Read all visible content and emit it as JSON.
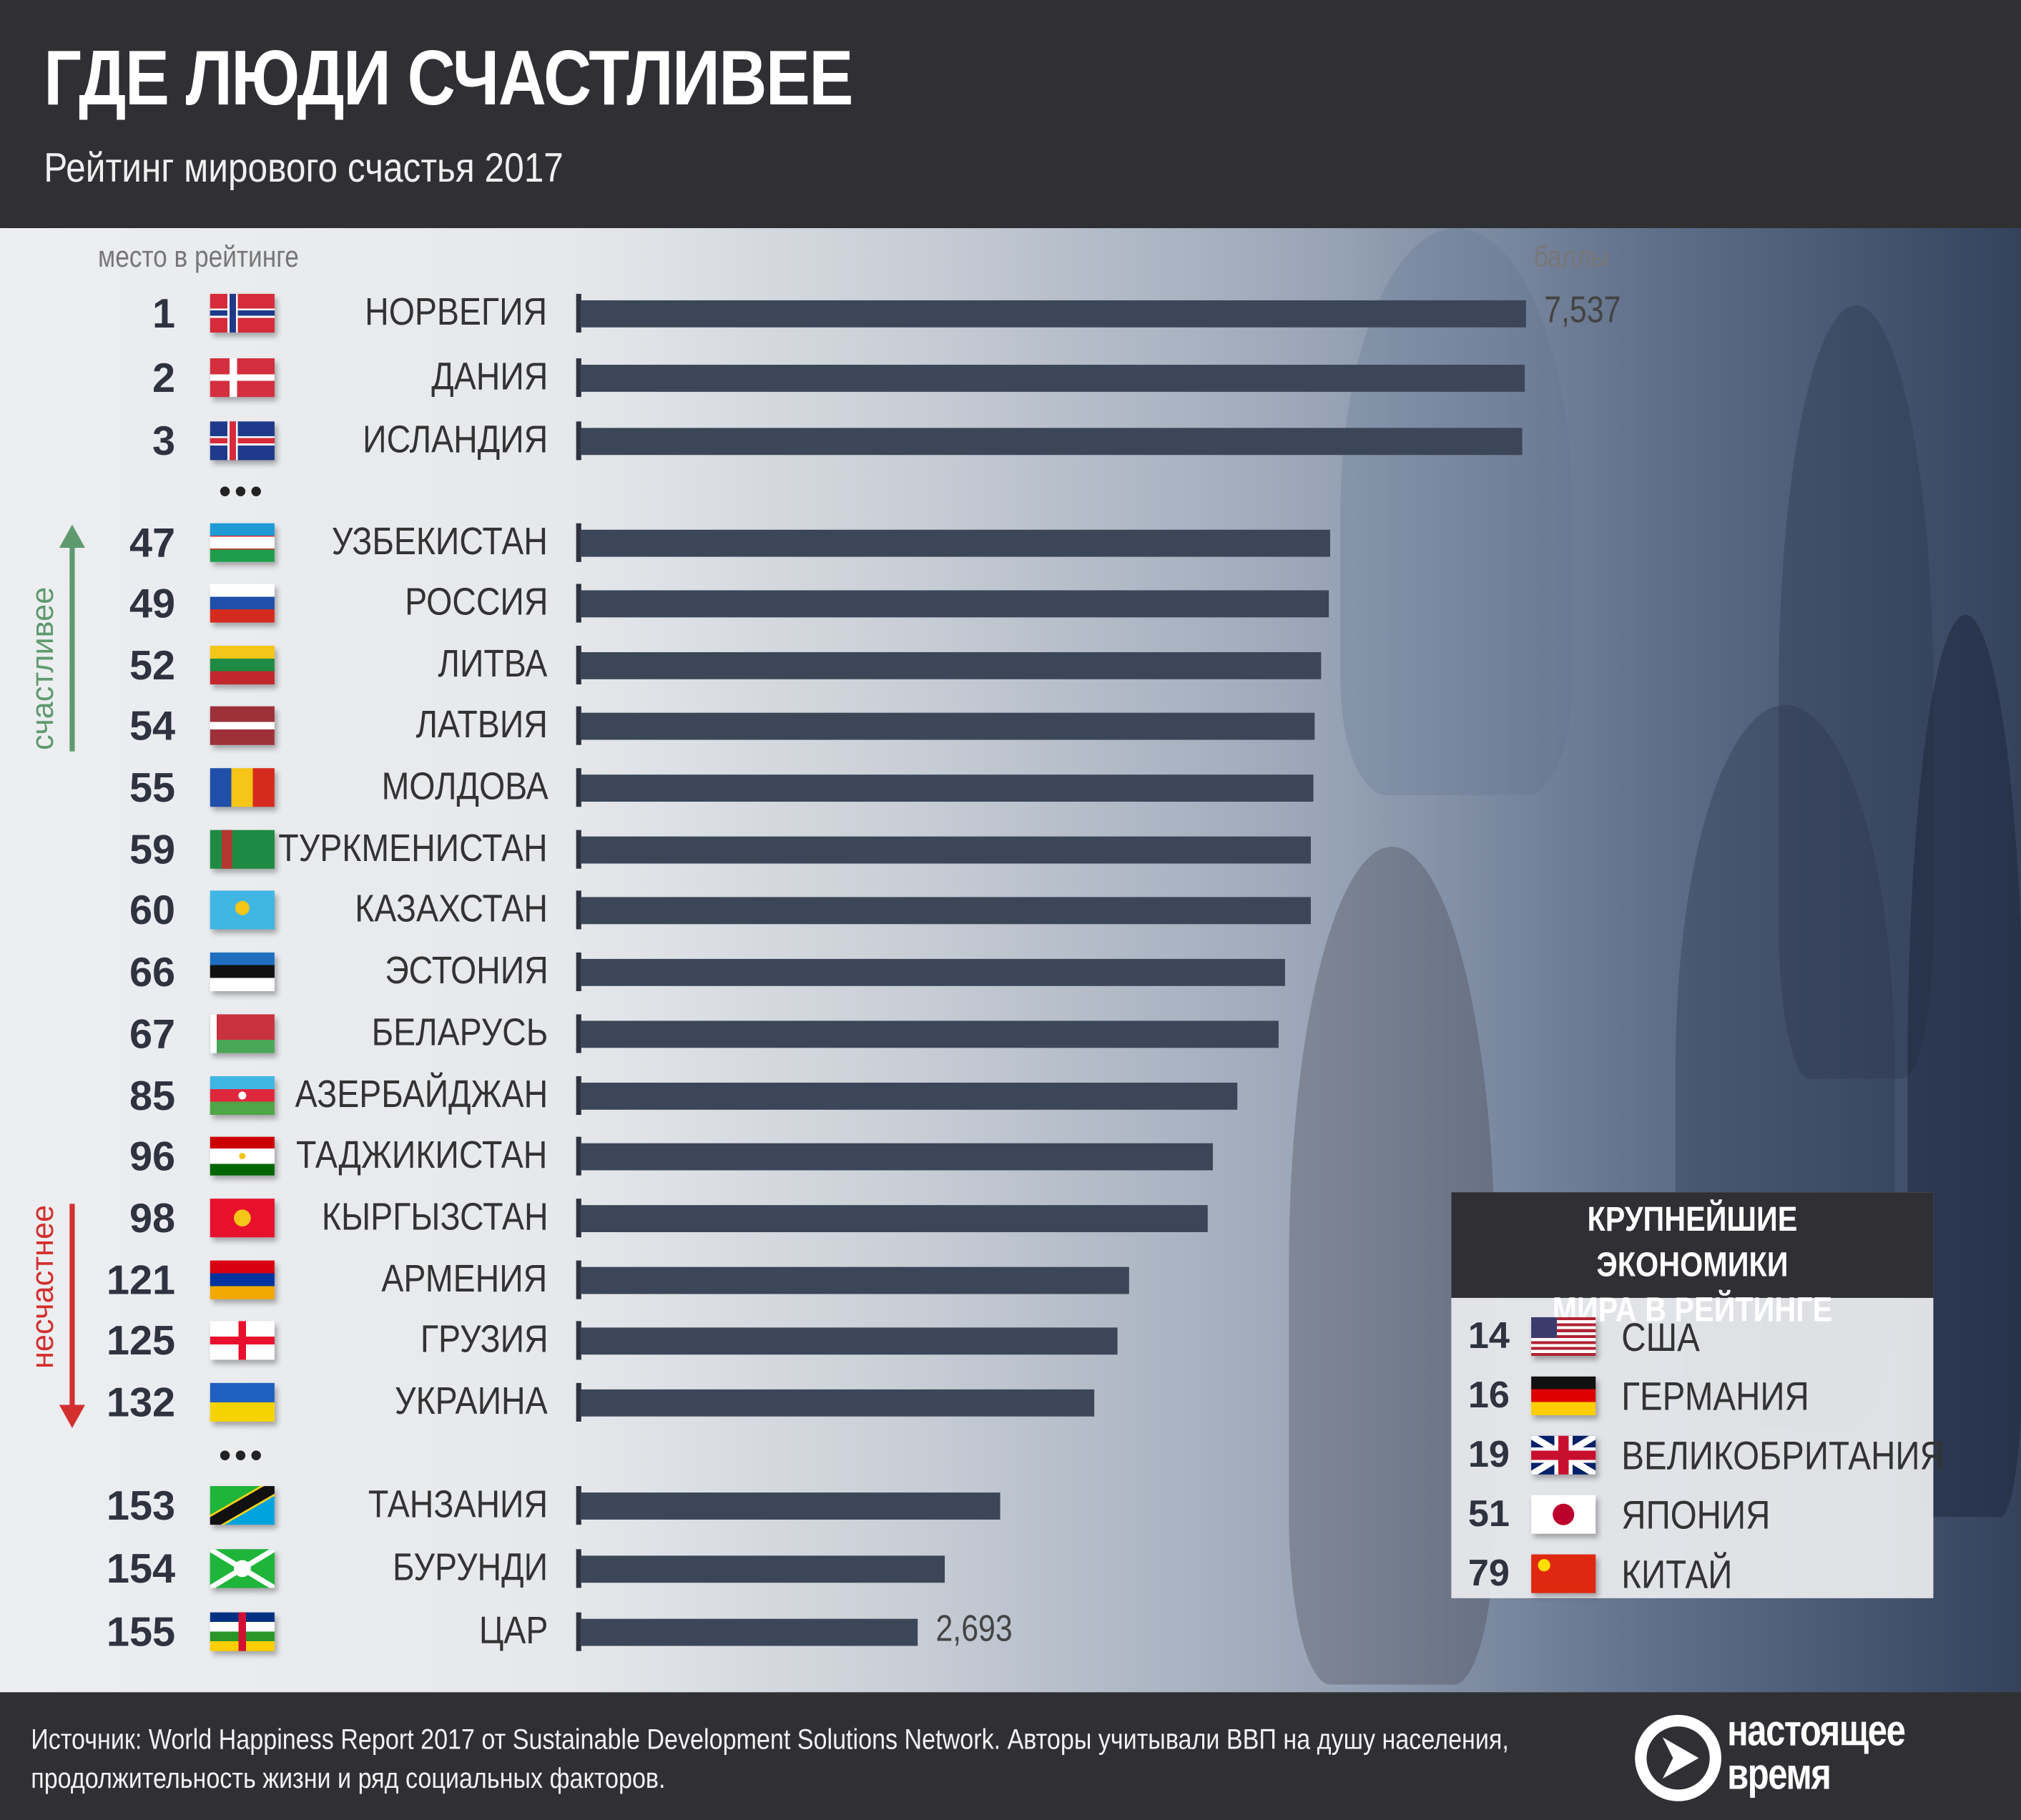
{
  "header": {
    "title": "ГДЕ ЛЮДИ СЧАСТЛИВЕЕ",
    "subtitle": "Рейтинг мирового счастья 2017"
  },
  "labels": {
    "rank_column": "место в рейтинге",
    "score_column": "баллы",
    "happier": "счастливее",
    "unhappier": "несчастнее",
    "ellipsis": "•••"
  },
  "colors": {
    "bar": "#3b4659",
    "happier_arrow": "#5f9a6e",
    "unhappier_arrow": "#d32f2f",
    "header_bg": "#303034"
  },
  "chart_data": {
    "type": "bar",
    "orientation": "horizontal",
    "title": "ГДЕ ЛЮДИ СЧАСТЛИВЕЕ",
    "subtitle": "Рейтинг мирового счастья 2017",
    "xlabel": "баллы",
    "ylabel": "место в рейтинге",
    "xlim": [
      0,
      7.6
    ],
    "grid": false,
    "rows": [
      {
        "rank": "1",
        "country": "НОРВЕГИЯ",
        "flag": "norway",
        "value": 7.537,
        "label": "7,537"
      },
      {
        "rank": "2",
        "country": "ДАНИЯ",
        "flag": "denmark",
        "value": 7.522
      },
      {
        "rank": "3",
        "country": "ИСЛАНДИЯ",
        "flag": "iceland",
        "value": 7.504
      },
      {
        "rank": "47",
        "country": "УЗБЕКИСТАН",
        "flag": "uzbekistan",
        "value": 5.971
      },
      {
        "rank": "49",
        "country": "РОССИЯ",
        "flag": "russia",
        "value": 5.963
      },
      {
        "rank": "52",
        "country": "ЛИТВА",
        "flag": "lithuania",
        "value": 5.902
      },
      {
        "rank": "54",
        "country": "ЛАТВИЯ",
        "flag": "latvia",
        "value": 5.85
      },
      {
        "rank": "55",
        "country": "МОЛДОВА",
        "flag": "moldova",
        "value": 5.838
      },
      {
        "rank": "59",
        "country": "ТУРКМЕНИСТАН",
        "flag": "turkmenistan",
        "value": 5.822
      },
      {
        "rank": "60",
        "country": "КАЗАХСТАН",
        "flag": "kazakhstan",
        "value": 5.819
      },
      {
        "rank": "66",
        "country": "ЭСТОНИЯ",
        "flag": "estonia",
        "value": 5.611
      },
      {
        "rank": "67",
        "country": "БЕЛАРУСЬ",
        "flag": "belarus",
        "value": 5.569
      },
      {
        "rank": "85",
        "country": "АЗЕРБАЙДЖАН",
        "flag": "azerbaijan",
        "value": 5.234
      },
      {
        "rank": "96",
        "country": "ТАДЖИКИСТАН",
        "flag": "tajikistan",
        "value": 5.041
      },
      {
        "rank": "98",
        "country": "КЫРГЫЗСТАН",
        "flag": "kyrgyzstan",
        "value": 5.004
      },
      {
        "rank": "121",
        "country": "АРМЕНИЯ",
        "flag": "armenia",
        "value": 4.376
      },
      {
        "rank": "125",
        "country": "ГРУЗИЯ",
        "flag": "georgia",
        "value": 4.286
      },
      {
        "rank": "132",
        "country": "УКРАИНА",
        "flag": "ukraine",
        "value": 4.096
      },
      {
        "rank": "153",
        "country": "ТАНЗАНИЯ",
        "flag": "tanzania",
        "value": 3.349
      },
      {
        "rank": "154",
        "country": "БУРУНДИ",
        "flag": "burundi",
        "value": 2.905
      },
      {
        "rank": "155",
        "country": "ЦАР",
        "flag": "car",
        "value": 2.693,
        "label": "2,693"
      }
    ]
  },
  "legend": {
    "title_line1": "КРУПНЕЙШИЕ ЭКОНОМИКИ",
    "title_line2": "МИРА В РЕЙТИНГЕ",
    "items": [
      {
        "rank": "14",
        "country": "США",
        "flag": "usa"
      },
      {
        "rank": "16",
        "country": "ГЕРМАНИЯ",
        "flag": "germany"
      },
      {
        "rank": "19",
        "country": "ВЕЛИКОБРИТАНИЯ",
        "flag": "uk"
      },
      {
        "rank": "51",
        "country": "ЯПОНИЯ",
        "flag": "japan"
      },
      {
        "rank": "79",
        "country": "КИТАЙ",
        "flag": "china"
      }
    ]
  },
  "footer": {
    "source": "Источник: World Happiness Report 2017 от Sustainable Development Solutions Network. Авторы учитывали ВВП на душу населения, продолжительность жизни и ряд социальных факторов.",
    "logo_line1": "настоящее",
    "logo_line2": "время"
  }
}
